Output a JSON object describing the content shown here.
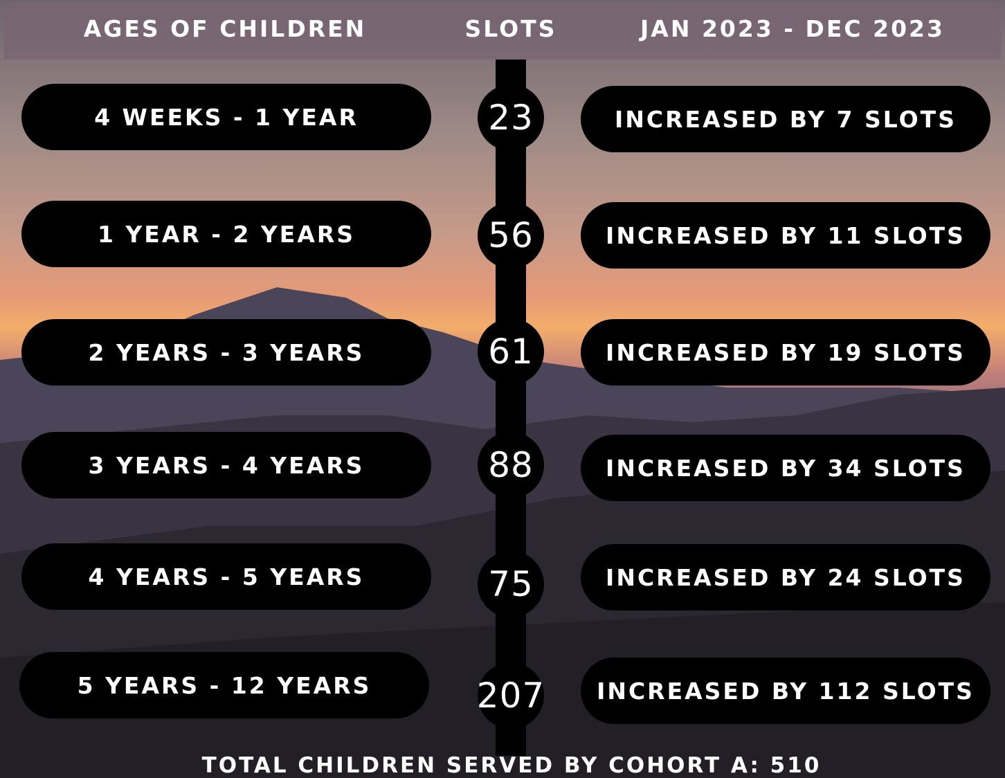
{
  "header": {
    "columns": [
      "AGES OF CHILDREN",
      "SLOTS",
      "JAN 2023 - DEC 2023"
    ]
  },
  "rows": [
    {
      "age": "4 WEEKS - 1 YEAR",
      "slots": 23,
      "change": "INCREASED BY 7 SLOTS"
    },
    {
      "age": "1 YEAR - 2 YEARS",
      "slots": 56,
      "change": "INCREASED BY 11 SLOTS"
    },
    {
      "age": "2 YEARS - 3 YEARS",
      "slots": 61,
      "change": "INCREASED BY 19 SLOTS"
    },
    {
      "age": "3 YEARS - 4 YEARS",
      "slots": 88,
      "change": "INCREASED BY 34 SLOTS"
    },
    {
      "age": "4 YEARS - 5 YEARS",
      "slots": 75,
      "change": "INCREASED BY 24 SLOTS"
    },
    {
      "age": "5 YEARS - 12 YEARS",
      "slots": 207,
      "change": "INCREASED BY 112 SLOTS"
    }
  ],
  "footer": "TOTAL CHILDREN SERVED BY COHORT A: 510"
}
